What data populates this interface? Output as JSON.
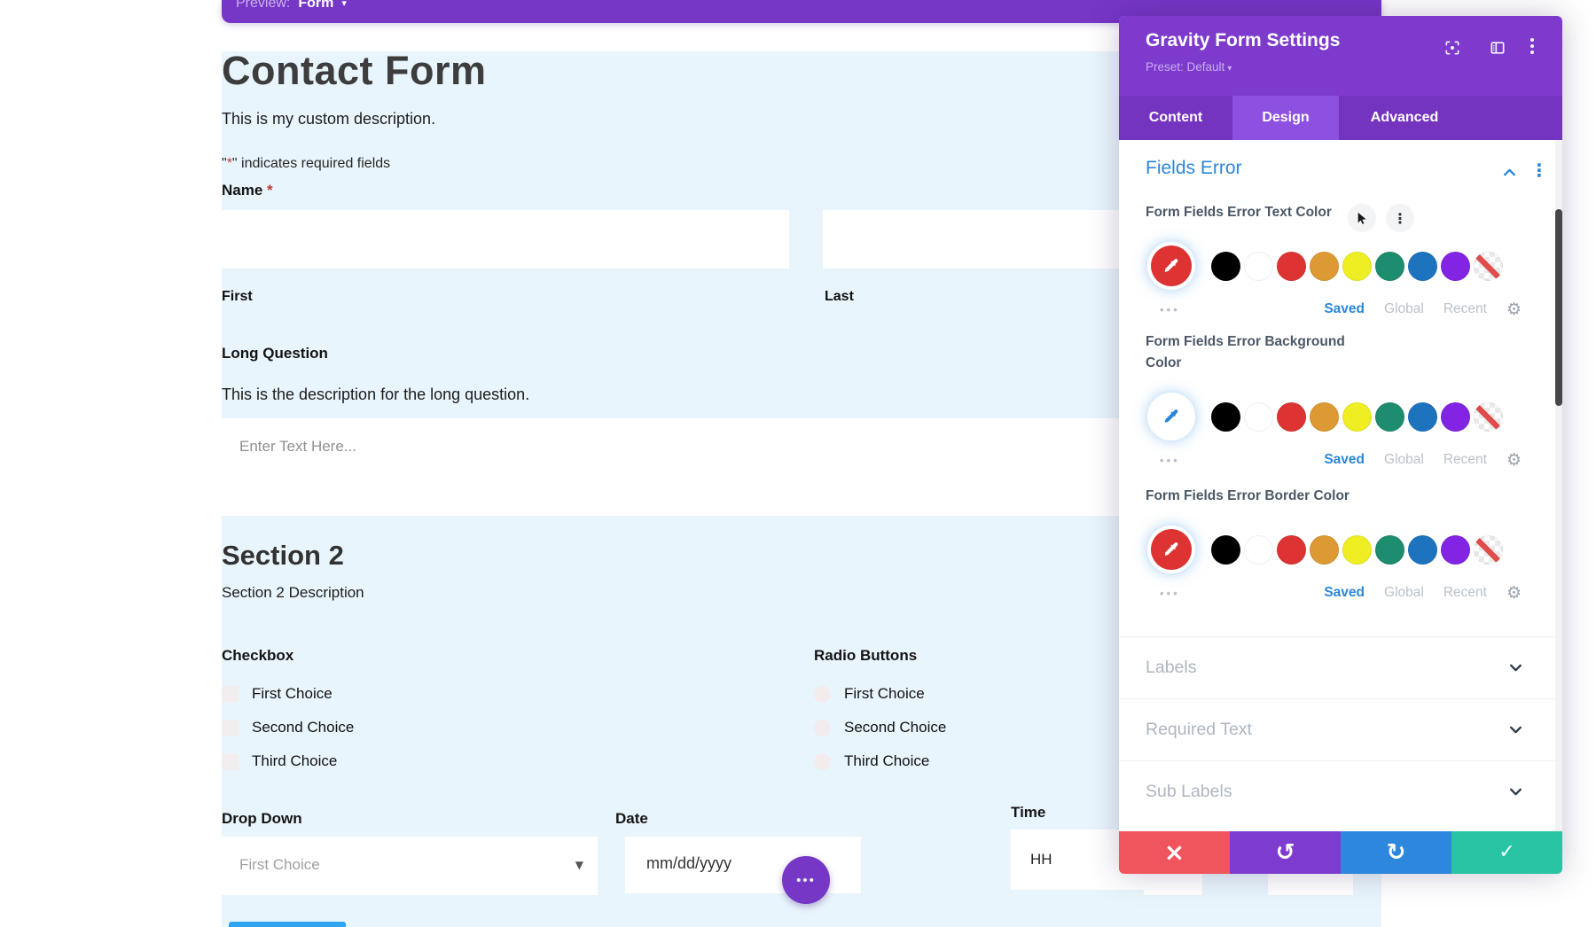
{
  "preview_bar": {
    "label": "Preview:",
    "value": "Form",
    "caret": "▾"
  },
  "form": {
    "title": "Contact Form",
    "description": "This is my custom description.",
    "required_note": {
      "open": "\"",
      "asterisk": "*",
      "rest": "\" indicates required fields"
    },
    "name": {
      "label": "Name",
      "required_mark": "*",
      "sub_first": "First",
      "sub_last": "Last"
    },
    "long_question": {
      "label": "Long Question",
      "description": "This is the description for the long question.",
      "placeholder": "Enter Text Here..."
    },
    "section2": {
      "title": "Section 2",
      "description": "Section 2 Description"
    },
    "checkbox": {
      "label": "Checkbox",
      "options": [
        "First Choice",
        "Second Choice",
        "Third Choice"
      ]
    },
    "radio": {
      "label": "Radio Buttons",
      "options": [
        "First Choice",
        "Second Choice",
        "Third Choice"
      ]
    },
    "dropdown": {
      "label": "Drop Down",
      "value": "First Choice",
      "caret": "▼"
    },
    "date": {
      "label": "Date",
      "placeholder": "mm/dd/yyyy",
      "menu_dots": "•••"
    },
    "time": {
      "label": "Time",
      "placeholder": "HH"
    },
    "submit_color": "#2ea3f2"
  },
  "panel": {
    "title": "Gravity Form Settings",
    "preset_label": "Preset: Default",
    "preset_caret": "▾",
    "tabs": [
      "Content",
      "Design",
      "Advanced"
    ],
    "active_tab": "Design",
    "section_title": "Fields Error",
    "groups": [
      {
        "label": "Form Fields Error Text Color",
        "picker_color": "#dd3333",
        "picker_glyph_color": "#ffffff"
      },
      {
        "label": "Form Fields Error Background Color",
        "picker_color": "#ffffff",
        "picker_glyph_color": "#2b87da"
      },
      {
        "label": "Form Fields Error Border Color",
        "picker_color": "#dd3333",
        "picker_glyph_color": "#ffffff"
      }
    ],
    "palette": [
      "#000000",
      "#ffffff",
      "#dd3333",
      "#dd9933",
      "#eeee22",
      "#1e8c6e",
      "#1e73be",
      "#8224e3",
      "transparent"
    ],
    "links": {
      "saved": "Saved",
      "global": "Global",
      "recent": "Recent"
    },
    "more_dots": "•••",
    "collapsed": [
      "Labels",
      "Required Text",
      "Sub Labels"
    ],
    "footer": {
      "cancel_color": "#f0545c",
      "undo_color": "#7e3bd0",
      "redo_color": "#2d87dc",
      "save_color": "#28c4a4"
    },
    "glyphs": {
      "gear": "⚙",
      "kebab": "⋮",
      "cross": "×",
      "undo": "↺",
      "redo": "↻",
      "check": "✓"
    }
  }
}
